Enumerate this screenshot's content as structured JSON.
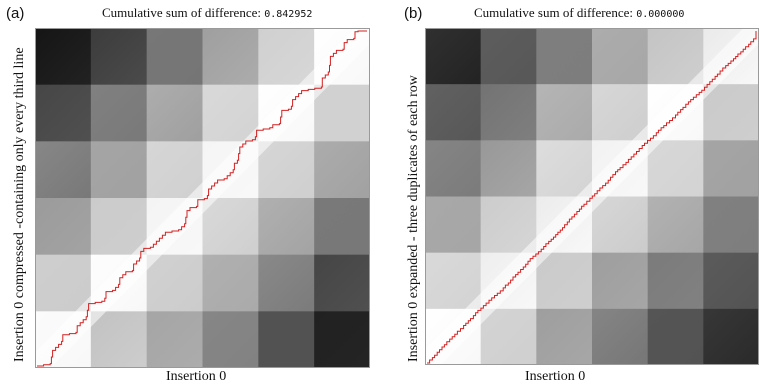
{
  "panel_a": {
    "label": "(a)",
    "title_prefix": "Cumulative sum of difference:",
    "title_value": "0.842952",
    "xlabel": "Insertion 0",
    "ylabel": "Insertion 0 compressed -containing only every third line",
    "grid_cols": 6,
    "grid_rows": 6,
    "path_color": "#d42020"
  },
  "panel_b": {
    "label": "(b)",
    "title_prefix": "Cumulative sum of difference:",
    "title_value": "0.000000",
    "xlabel": "Insertion 0",
    "ylabel": "Insertion 0 expanded - three duplicates of each row",
    "grid_cols": 6,
    "grid_rows": 6,
    "path_color": "#d42020"
  }
}
